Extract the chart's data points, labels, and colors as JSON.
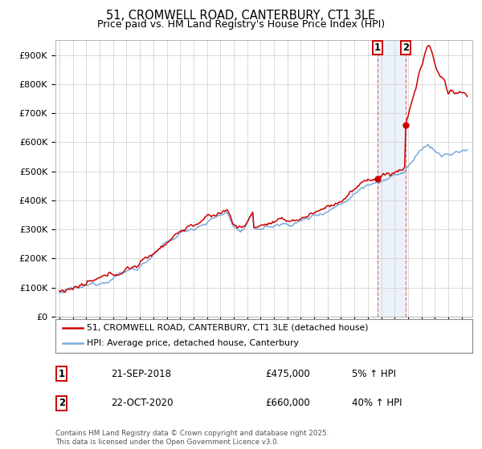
{
  "title": "51, CROMWELL ROAD, CANTERBURY, CT1 3LE",
  "subtitle": "Price paid vs. HM Land Registry's House Price Index (HPI)",
  "ylabel_ticks": [
    "£0",
    "£100K",
    "£200K",
    "£300K",
    "£400K",
    "£500K",
    "£600K",
    "£700K",
    "£800K",
    "£900K"
  ],
  "ytick_values": [
    0,
    100000,
    200000,
    300000,
    400000,
    500000,
    600000,
    700000,
    800000,
    900000
  ],
  "ylim": [
    0,
    950000
  ],
  "xlim_start": 1994.7,
  "xlim_end": 2025.8,
  "hpi_color": "#7aaadb",
  "price_color": "#cc0000",
  "marker1_date": 2018.72,
  "marker1_price": 475000,
  "marker2_date": 2020.82,
  "marker2_price": 660000,
  "vline_color": "#cc0000",
  "vline_alpha": 0.5,
  "shade_color": "#d6e4f5",
  "shade_alpha": 0.45,
  "legend1_label": "51, CROMWELL ROAD, CANTERBURY, CT1 3LE (detached house)",
  "legend2_label": "HPI: Average price, detached house, Canterbury",
  "table_rows": [
    {
      "num": "1",
      "date": "21-SEP-2018",
      "price": "£475,000",
      "pct": "5% ↑ HPI"
    },
    {
      "num": "2",
      "date": "22-OCT-2020",
      "price": "£660,000",
      "pct": "40% ↑ HPI"
    }
  ],
  "footnote": "Contains HM Land Registry data © Crown copyright and database right 2025.\nThis data is licensed under the Open Government Licence v3.0.",
  "background_color": "#ffffff",
  "grid_color": "#cccccc"
}
